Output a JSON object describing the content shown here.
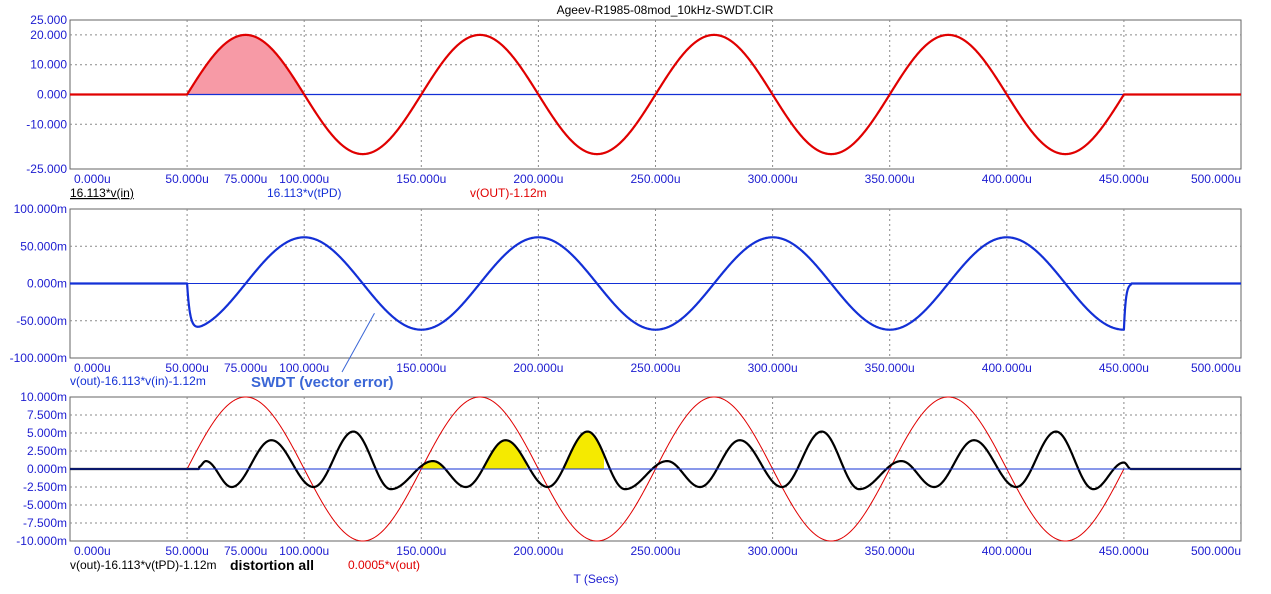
{
  "window": {
    "title": "Ageev-R1985-08mod_10kHz-SWDT.CIR",
    "x_axis_label": "T (Secs)"
  },
  "colors": {
    "title": "#1c2fd6",
    "axis_text": "#1c1cd0",
    "red": "#e00000",
    "blue": "#1330d6",
    "black": "#000000",
    "pink_fill": "#f79aa6",
    "yellow_fill": "#f5ea00",
    "grid": "#8a8a8a",
    "annotation": "#3a66d6"
  },
  "chart_data": [
    {
      "type": "line",
      "id": "top",
      "x_unit": "u",
      "xlim": [
        0,
        500
      ],
      "x_ticks": [
        0,
        50,
        100,
        150,
        200,
        250,
        300,
        350,
        400,
        450,
        500
      ],
      "x_tick_labels": [
        "0.000u",
        "50.000u",
        "100.000u",
        "150.000u",
        "200.000u",
        "250.000u",
        "300.000u",
        "350.000u",
        "400.000u",
        "450.000u",
        "500.000u"
      ],
      "x_extra_labels": [
        {
          "x": 75,
          "text": "75.000u"
        }
      ],
      "ylim": [
        -25,
        25
      ],
      "y_ticks": [
        25,
        20,
        10,
        0,
        -10,
        -25
      ],
      "y_tick_labels": [
        "25.000",
        "20.000",
        "10.000",
        "0.000",
        "-10.000",
        "-25.000"
      ],
      "grid": true,
      "series": [
        {
          "name": "16.113*v(in)",
          "color": "#1330d6",
          "kind": "zero",
          "width": 1.2
        },
        {
          "name": "16.113*v(tPD)",
          "color": "#1330d6",
          "kind": "zero",
          "width": 1.0
        },
        {
          "name": "v(OUT)-1.12m",
          "color": "#e00000",
          "kind": "sine",
          "amp": 20,
          "period": 100,
          "start": 50,
          "end": 450,
          "width": 2.2
        }
      ],
      "shaded": [
        {
          "from": 50,
          "to": 100,
          "color": "#f79aa6"
        }
      ]
    },
    {
      "type": "line",
      "id": "middle",
      "x_unit": "u",
      "xlim": [
        0,
        500
      ],
      "x_ticks": [
        0,
        50,
        100,
        150,
        200,
        250,
        300,
        350,
        400,
        450,
        500
      ],
      "x_tick_labels": [
        "0.000u",
        "50.000u",
        "100.000u",
        "150.000u",
        "200.000u",
        "250.000u",
        "300.000u",
        "350.000u",
        "400.000u",
        "450.000u",
        "500.000u"
      ],
      "x_extra_labels": [
        {
          "x": 75,
          "text": "75.000u"
        }
      ],
      "ylim": [
        -100,
        100
      ],
      "y_ticks": [
        100,
        50,
        0,
        -50,
        -100
      ],
      "y_tick_labels": [
        "100.000m",
        "50.000m",
        "0.000m",
        "-50.000m",
        "-100.000m"
      ],
      "grid": true,
      "series": [
        {
          "name": "v(out)-16.113*v(in)-1.12m",
          "color": "#1330d6",
          "kind": "vector_error",
          "amp": 62,
          "period": 100,
          "start": 50,
          "end": 450,
          "width": 2.2
        }
      ],
      "annotation": {
        "text": "SWDT (vector error)",
        "x": 130,
        "y": -40
      }
    },
    {
      "type": "line",
      "id": "bottom",
      "x_unit": "u",
      "xlim": [
        0,
        500
      ],
      "x_ticks": [
        0,
        50,
        100,
        150,
        200,
        250,
        300,
        350,
        400,
        450,
        500
      ],
      "x_tick_labels": [
        "0.000u",
        "50.000u",
        "100.000u",
        "150.000u",
        "200.000u",
        "250.000u",
        "300.000u",
        "350.000u",
        "400.000u",
        "450.000u",
        "500.000u"
      ],
      "x_extra_labels": [
        {
          "x": 75,
          "text": "75.000u"
        }
      ],
      "ylim": [
        -10,
        10
      ],
      "y_ticks": [
        10,
        7.5,
        5,
        2.5,
        0,
        -2.5,
        -5,
        -7.5,
        -10
      ],
      "y_tick_labels": [
        "10.000m",
        "7.500m",
        "5.000m",
        "2.500m",
        "0.000m",
        "-2.500m",
        "-5.000m",
        "-7.500m",
        "-10.000m"
      ],
      "grid": true,
      "series": [
        {
          "name": "v(out)-16.113*v(tPD)-1.12m",
          "color": "#000000",
          "kind": "distortion",
          "width": 2.2
        },
        {
          "name": "0.0005*v(out)",
          "color": "#e00000",
          "kind": "sine",
          "amp": 10,
          "period": 100,
          "start": 50,
          "end": 450,
          "width": 1.0
        }
      ],
      "distortion_peaks": [
        {
          "x": 55,
          "y": 0.3
        },
        {
          "x": 58,
          "y": 1.1
        },
        {
          "x": 69,
          "y": -2.5
        },
        {
          "x": 86,
          "y": 4.0
        },
        {
          "x": 104,
          "y": -2.5
        },
        {
          "x": 121,
          "y": 5.2
        },
        {
          "x": 137,
          "y": -2.8
        },
        {
          "x": 155,
          "y": 1.1
        },
        {
          "x": 169,
          "y": -2.5
        },
        {
          "x": 186,
          "y": 4.0
        },
        {
          "x": 204,
          "y": -2.5
        },
        {
          "x": 221,
          "y": 5.2
        },
        {
          "x": 237,
          "y": -2.8
        },
        {
          "x": 255,
          "y": 1.1
        },
        {
          "x": 269,
          "y": -2.5
        },
        {
          "x": 286,
          "y": 4.0
        },
        {
          "x": 304,
          "y": -2.5
        },
        {
          "x": 321,
          "y": 5.2
        },
        {
          "x": 337,
          "y": -2.8
        },
        {
          "x": 355,
          "y": 1.1
        },
        {
          "x": 369,
          "y": -2.5
        },
        {
          "x": 386,
          "y": 4.0
        },
        {
          "x": 404,
          "y": -2.5
        },
        {
          "x": 421,
          "y": 5.2
        },
        {
          "x": 437,
          "y": -2.8
        },
        {
          "x": 450,
          "y": 0.9
        },
        {
          "x": 453,
          "y": 0
        }
      ],
      "shaded": [
        {
          "from": 150,
          "to": 160,
          "color": "#f5ea00"
        },
        {
          "from": 177,
          "to": 195,
          "color": "#f5ea00"
        },
        {
          "from": 211,
          "to": 228,
          "color": "#f5ea00"
        }
      ],
      "annotation": {
        "text": "distortion all"
      }
    }
  ]
}
